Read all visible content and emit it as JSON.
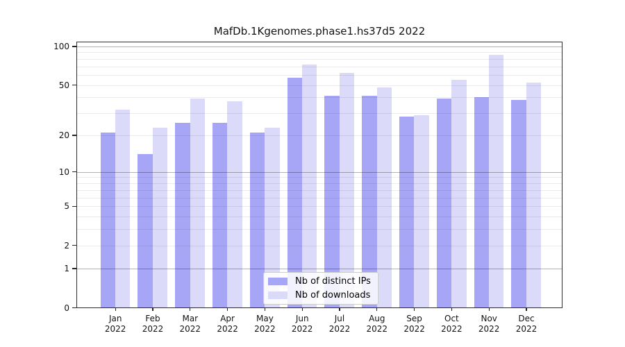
{
  "title": "MafDb.1Kgenomes.phase1.hs37d5 2022",
  "legend": {
    "items": [
      {
        "label": "Nb of distinct IPs",
        "color": "#a6a5f6"
      },
      {
        "label": "Nb of downloads",
        "color": "#dbdaf8"
      }
    ]
  },
  "axes": {
    "ytick_labels": [
      "0",
      "1",
      "2",
      "5",
      "10",
      "20",
      "50",
      "100"
    ]
  },
  "chart_data": {
    "type": "bar",
    "title": "MafDb.1Kgenomes.phase1.hs37d5 2022",
    "xlabel": "",
    "ylabel": "",
    "yscale": "log1p",
    "categories": [
      "Jan",
      "Feb",
      "Mar",
      "Apr",
      "May",
      "Jun",
      "Jul",
      "Aug",
      "Sep",
      "Oct",
      "Nov",
      "Dec"
    ],
    "year": "2022",
    "series": [
      {
        "name": "Nb of distinct IPs",
        "color": "#a6a5f6",
        "values": [
          21,
          14,
          25,
          25,
          21,
          57,
          41,
          41,
          28,
          39,
          40,
          38
        ]
      },
      {
        "name": "Nb of downloads",
        "color": "#dbdaf8",
        "values": [
          32,
          23,
          39,
          37,
          23,
          72,
          62,
          48,
          29,
          55,
          86,
          52
        ]
      }
    ],
    "yticks": [
      0,
      1,
      2,
      5,
      10,
      20,
      50,
      100
    ],
    "major_gridlines": [
      1,
      10,
      100
    ],
    "minor_gridlines": [
      2,
      3,
      4,
      5,
      6,
      7,
      8,
      9,
      20,
      30,
      40,
      50,
      60,
      70,
      80,
      90
    ],
    "ylim": [
      0,
      110
    ],
    "grid": true,
    "legend_position": "lower center"
  },
  "colors": {
    "background": "#ffffff",
    "spine": "#2b2b2b",
    "major_grid": "rgba(0,0,0,0.30)",
    "minor_grid": "rgba(0,0,0,0.08)"
  }
}
